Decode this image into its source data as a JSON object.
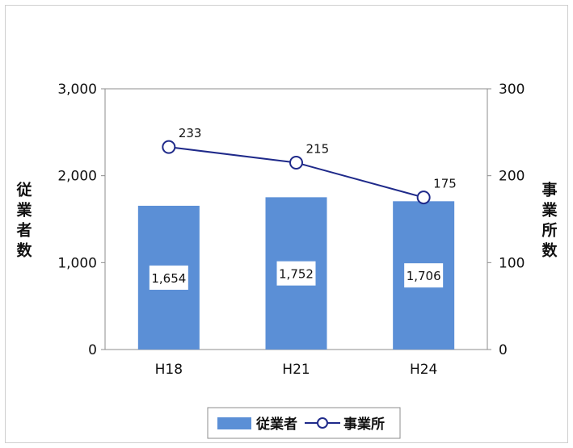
{
  "chart_data": {
    "type": "bar+line",
    "categories": [
      "H18",
      "H21",
      "H24"
    ],
    "series": [
      {
        "name": "従業者",
        "type": "bar",
        "axis": "left",
        "values": [
          1654,
          1752,
          1706
        ],
        "value_labels": [
          "1,654",
          "1,752",
          "1,706"
        ],
        "color": "#5b8fd6"
      },
      {
        "name": "事業所",
        "type": "line",
        "axis": "right",
        "values": [
          233,
          215,
          175
        ],
        "value_labels": [
          "233",
          "215",
          "175"
        ],
        "color": "#1f2a8a"
      }
    ],
    "y_left": {
      "label": "従業者数",
      "range": [
        0,
        3000
      ],
      "ticks": [
        "0",
        "1,000",
        "2,000",
        "3,000"
      ]
    },
    "y_right": {
      "label": "事業所数",
      "range": [
        0,
        300
      ],
      "ticks": [
        "0",
        "100",
        "200",
        "300"
      ]
    },
    "grid": false,
    "legend": "bottom-center"
  }
}
